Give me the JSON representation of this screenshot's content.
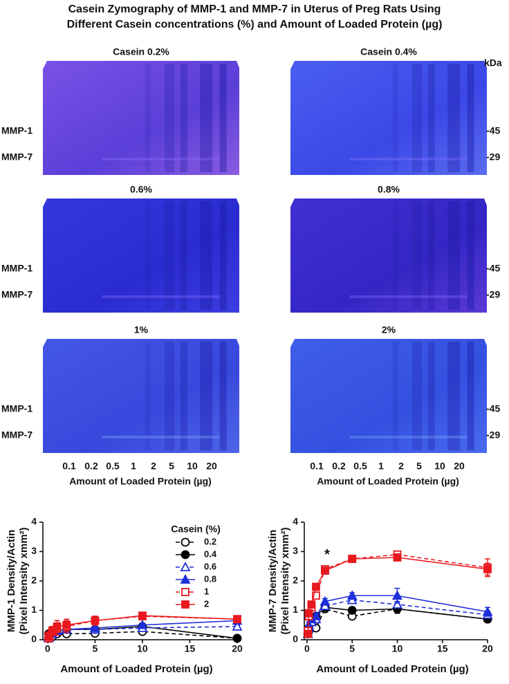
{
  "title_lines": [
    "Casein Zymography of MMP-1 and MMP-7 in Uterus of Preg Rats Using",
    "Different Casein concentrations (%) and Amount of Loaded Protein (µg)"
  ],
  "gels": {
    "panels": [
      {
        "title": "Casein 0.2%"
      },
      {
        "title": "Casein 0.4%"
      },
      {
        "title": "0.6%"
      },
      {
        "title": "0.8%"
      },
      {
        "title": "1%"
      },
      {
        "title": "2%"
      }
    ],
    "row_labels": [
      "MMP-1",
      "MMP-7"
    ],
    "kda_label": "kDa",
    "markers": [
      "-45",
      "-29"
    ],
    "lanes": [
      "0.1",
      "0.2",
      "0.5",
      "1",
      "2",
      "5",
      "10",
      "20"
    ],
    "xlabel": "Amount of Loaded Protein (µg)"
  },
  "chart_data": [
    {
      "type": "line",
      "ylabel": [
        "MMP-1 Density/Actin",
        "(Pixel Intensity xmm²)"
      ],
      "xlabel": "Amount of Loaded Protein (µg)",
      "x": [
        0.1,
        0.2,
        0.5,
        1,
        2,
        5,
        10,
        20
      ],
      "xlim": [
        -0.5,
        20
      ],
      "xticks": [
        0,
        5,
        10,
        15,
        20
      ],
      "ylim": [
        0,
        4
      ],
      "yticks": [
        0,
        1,
        2,
        3,
        4
      ],
      "legend_title": "Casein (%)",
      "series": [
        {
          "name": "0.2",
          "color": "#000000",
          "marker": "circle",
          "filled": false,
          "dashed": true,
          "values": [
            0.05,
            0.05,
            0.1,
            0.2,
            0.2,
            0.22,
            0.28,
            0.05
          ],
          "errors": [
            0.03,
            0.03,
            0.05,
            0.05,
            0.05,
            0.05,
            0.05,
            0.03
          ]
        },
        {
          "name": "0.4",
          "color": "#000000",
          "marker": "circle",
          "filled": true,
          "dashed": false,
          "values": [
            0.2,
            0.15,
            0.25,
            0.3,
            0.35,
            0.35,
            0.45,
            0.05
          ],
          "errors": [
            0.03,
            0.03,
            0.05,
            0.05,
            0.05,
            0.05,
            0.05,
            0.03
          ]
        },
        {
          "name": "0.6",
          "color": "#1f2ed8",
          "marker": "triangle",
          "filled": false,
          "dashed": true,
          "values": [
            0.05,
            0.1,
            0.2,
            0.3,
            0.35,
            0.35,
            0.4,
            0.45
          ],
          "errors": [
            0.03,
            0.03,
            0.05,
            0.05,
            0.05,
            0.05,
            0.05,
            0.05
          ]
        },
        {
          "name": "0.8",
          "color": "#1f2ed8",
          "marker": "triangle",
          "filled": true,
          "dashed": false,
          "values": [
            0.1,
            0.1,
            0.2,
            0.3,
            0.35,
            0.4,
            0.5,
            0.65
          ],
          "errors": [
            0.03,
            0.03,
            0.05,
            0.05,
            0.05,
            0.05,
            0.05,
            0.05
          ]
        },
        {
          "name": "1",
          "color": "#e8191e",
          "marker": "square",
          "filled": false,
          "dashed": true,
          "values": [
            0.05,
            0.1,
            0.3,
            0.4,
            0.45,
            0.65,
            0.8,
            0.7
          ],
          "errors": [
            0.05,
            0.1,
            0.15,
            0.25,
            0.2,
            0.15,
            0.08,
            0.08
          ]
        },
        {
          "name": "2",
          "color": "#e8191e",
          "marker": "square",
          "filled": true,
          "dashed": false,
          "values": [
            0.1,
            0.15,
            0.3,
            0.45,
            0.5,
            0.65,
            0.82,
            0.7
          ],
          "errors": [
            0.05,
            0.1,
            0.15,
            0.2,
            0.2,
            0.15,
            0.1,
            0.1
          ]
        }
      ]
    },
    {
      "type": "line",
      "ylabel": [
        "MMP-7 Density/Actin",
        "(Pixel Intensity xmm²)"
      ],
      "xlabel": "Amount of Loaded Protein (µg)",
      "x": [
        0.1,
        0.2,
        0.5,
        1,
        2,
        5,
        10,
        20
      ],
      "xlim": [
        -0.3,
        20
      ],
      "xticks": [
        0,
        5,
        10,
        15,
        20
      ],
      "ylim": [
        0,
        4
      ],
      "yticks": [
        0,
        1,
        2,
        3,
        4
      ],
      "annotation": "*",
      "series": [
        {
          "color": "#000000",
          "marker": "circle",
          "filled": false,
          "dashed": true,
          "values": [
            0.2,
            0.3,
            0.4,
            0.4,
            1.05,
            0.8,
            1.05,
            0.7
          ],
          "errors": [
            0.05,
            0.05,
            0.05,
            0.05,
            0.1,
            0.05,
            0.1,
            0.1
          ]
        },
        {
          "color": "#000000",
          "marker": "circle",
          "filled": true,
          "dashed": false,
          "values": [
            0.2,
            0.4,
            0.7,
            0.8,
            1.1,
            1.0,
            1.05,
            0.7
          ],
          "errors": [
            0.05,
            0.05,
            0.05,
            0.05,
            0.1,
            0.05,
            0.15,
            0.1
          ]
        },
        {
          "color": "#1f2ed8",
          "marker": "triangle",
          "filled": false,
          "dashed": true,
          "values": [
            0.2,
            0.4,
            0.6,
            0.7,
            1.15,
            1.35,
            1.2,
            0.85
          ],
          "errors": [
            0.05,
            0.05,
            0.05,
            0.05,
            0.1,
            0.1,
            0.1,
            0.1
          ]
        },
        {
          "color": "#1f2ed8",
          "marker": "triangle",
          "filled": true,
          "dashed": false,
          "values": [
            0.2,
            0.5,
            0.7,
            0.8,
            1.3,
            1.5,
            1.5,
            0.95
          ],
          "errors": [
            0.05,
            0.1,
            0.1,
            0.1,
            0.1,
            0.1,
            0.25,
            0.15
          ]
        },
        {
          "color": "#e8191e",
          "marker": "square",
          "filled": false,
          "dashed": true,
          "values": [
            0.3,
            0.8,
            1.1,
            1.5,
            2.4,
            2.75,
            2.9,
            2.45
          ],
          "errors": [
            0.05,
            0.1,
            0.1,
            0.1,
            0.1,
            0.05,
            0.08,
            0.3
          ]
        },
        {
          "color": "#e8191e",
          "marker": "square",
          "filled": true,
          "dashed": false,
          "values": [
            0.2,
            0.9,
            1.2,
            1.8,
            2.35,
            2.75,
            2.8,
            2.4
          ],
          "errors": [
            0.05,
            0.1,
            0.1,
            0.1,
            0.1,
            0.08,
            0.1,
            0.2
          ]
        }
      ]
    }
  ]
}
